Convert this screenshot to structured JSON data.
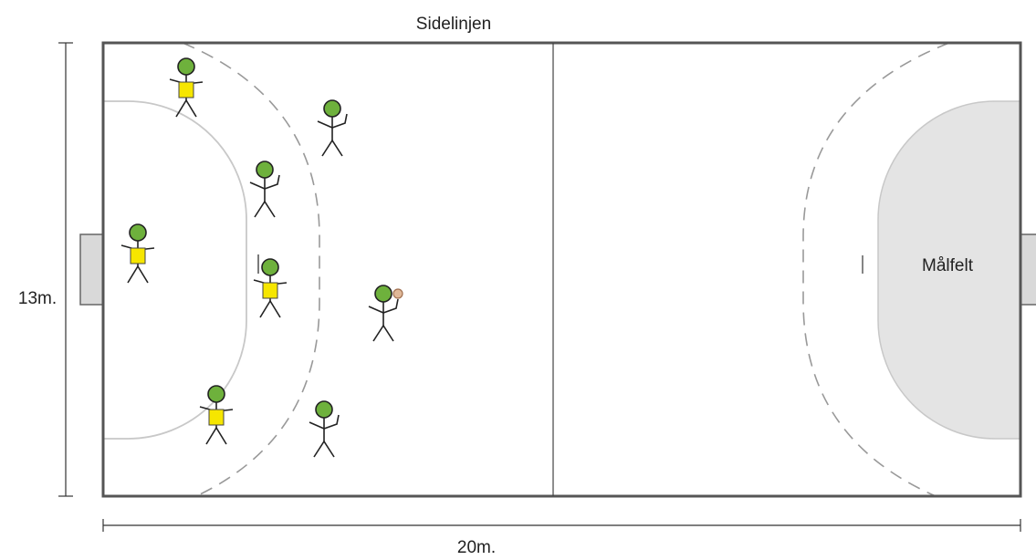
{
  "header": {
    "title": "Sidelinjen"
  },
  "dimensions": {
    "height": "13m.",
    "width": "20m."
  },
  "areas": {
    "goal_area": "Målfelt"
  }
}
